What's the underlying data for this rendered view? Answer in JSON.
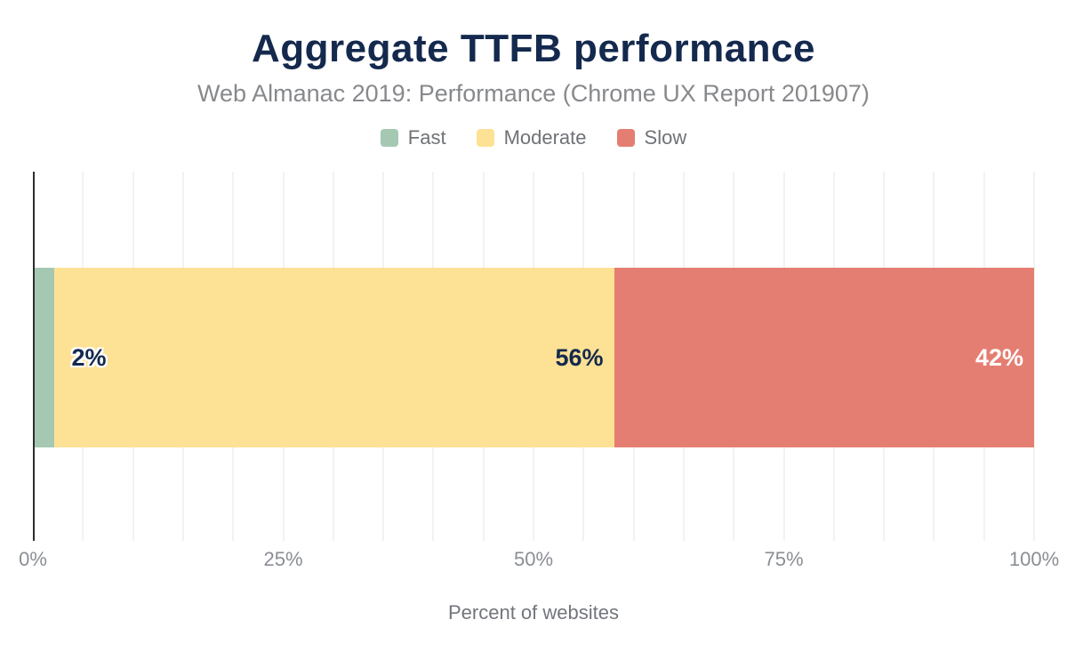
{
  "chart_data": {
    "type": "bar",
    "orientation": "horizontal",
    "stacked": true,
    "title": "Aggregate TTFB performance",
    "subtitle": "Web Almanac 2019: Performance (Chrome UX Report 201907)",
    "xlabel": "Percent of websites",
    "xlim": [
      0,
      100
    ],
    "grid": "vertical",
    "grid_interval_pct": 5,
    "legend_position": "top",
    "categories": [
      ""
    ],
    "series": [
      {
        "name": "Fast",
        "value": 2,
        "label": "2%",
        "color": "#a5c8b3",
        "label_color": "#14294d",
        "label_style": "outside-stroked"
      },
      {
        "name": "Moderate",
        "value": 56,
        "label": "56%",
        "color": "#fde195",
        "label_color": "#14294d",
        "label_style": "inside"
      },
      {
        "name": "Slow",
        "value": 42,
        "label": "42%",
        "color": "#e57e72",
        "label_color": "#ffffff",
        "label_style": "inside"
      }
    ],
    "x_ticks": [
      {
        "value": 0,
        "label": "0%"
      },
      {
        "value": 25,
        "label": "25%"
      },
      {
        "value": 50,
        "label": "50%"
      },
      {
        "value": 75,
        "label": "75%"
      },
      {
        "value": 100,
        "label": "100%"
      }
    ],
    "colors": {
      "title": "#14294d",
      "subtitle": "#87898c",
      "legend_label": "#6f7276",
      "tick_label": "#8a8e94",
      "axis_title": "#72767c",
      "axis_line": "#2d2d2d",
      "gridline": "#f2f2f2",
      "background": "#ffffff"
    }
  }
}
